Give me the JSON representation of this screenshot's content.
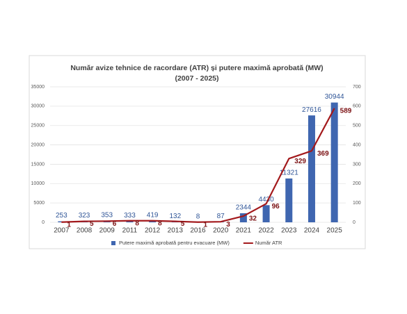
{
  "chart_data": {
    "type": "combo",
    "title": "Număr avize tehnice de racordare (ATR) și putere maximă aprobată (MW)",
    "subtitle": "(2007 - 2025)",
    "categories": [
      "2007",
      "2008",
      "2009",
      "2011",
      "2012",
      "2013",
      "2016",
      "2020",
      "2021",
      "2022",
      "2023",
      "2024",
      "2025"
    ],
    "series": [
      {
        "name": "Putere maximă aprobată pentru evacuare (MW)",
        "type": "bar",
        "color": "#3f66b0",
        "label_color": "#2f5597",
        "values": [
          253,
          323,
          353,
          333,
          419,
          132,
          8,
          87,
          2344,
          4430,
          11321,
          27616,
          30944
        ]
      },
      {
        "name": "Număr ATR",
        "type": "line",
        "axis": "y2",
        "color": "#a3191c",
        "label_color": "#7b1113",
        "values": [
          1,
          5,
          6,
          8,
          8,
          5,
          1,
          3,
          32,
          96,
          329,
          369,
          589
        ]
      }
    ],
    "ylim": [
      0,
      35000
    ],
    "yticks": [
      0,
      5000,
      10000,
      15000,
      20000,
      25000,
      30000,
      35000
    ],
    "y2lim": [
      0,
      700
    ],
    "y2ticks": [
      0,
      100,
      200,
      300,
      400,
      500,
      600,
      700
    ],
    "grid": true,
    "legend": "bottom"
  }
}
